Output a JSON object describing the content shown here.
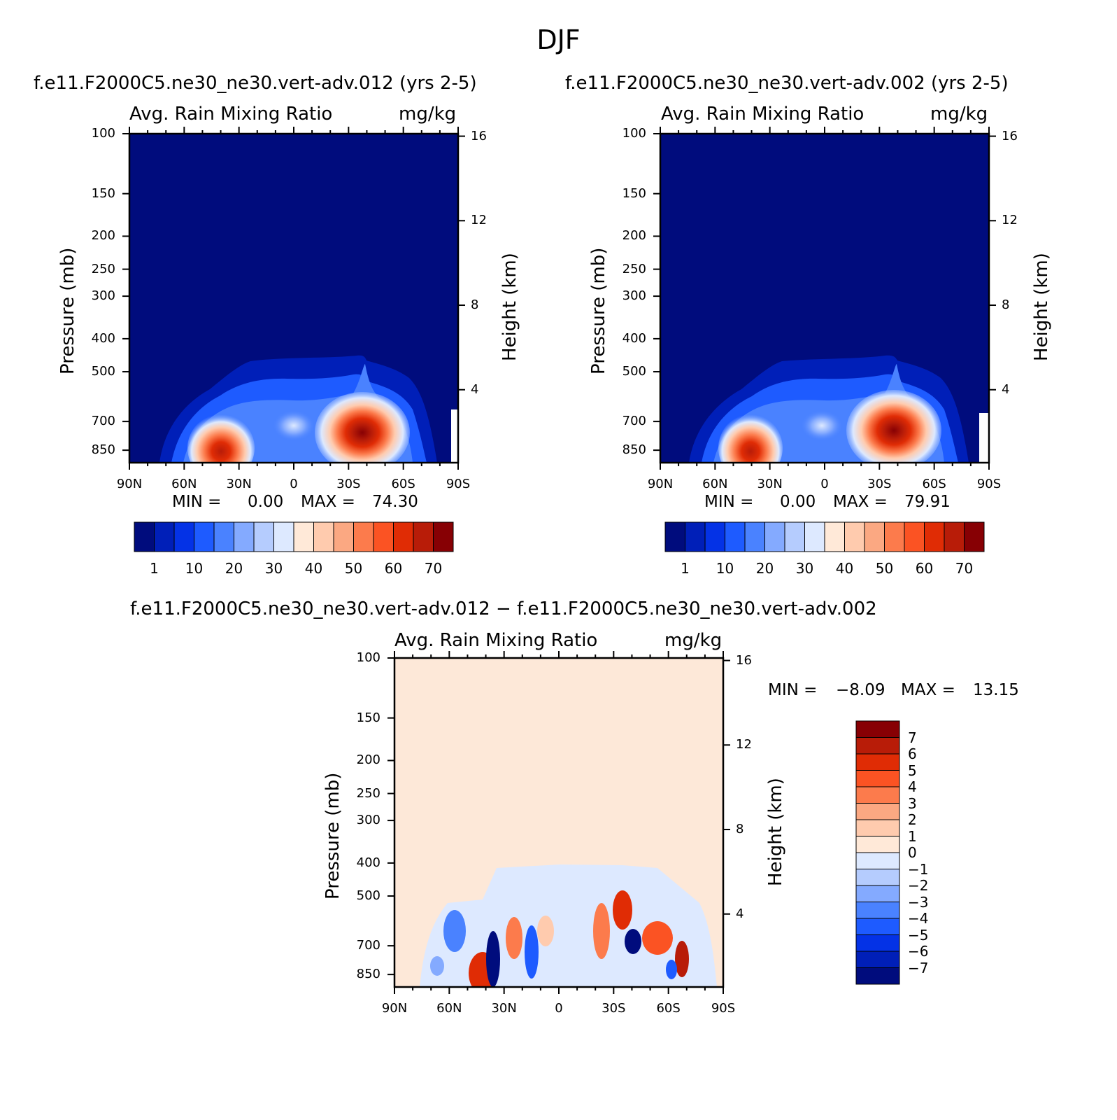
{
  "page": {
    "title": "DJF"
  },
  "panels": [
    {
      "id": "left",
      "case_title": "f.e11.F2000C5.ne30_ne30.vert-adv.012 (yrs 2-5)",
      "variable": "Avg. Rain Mixing Ratio",
      "units": "mg/kg",
      "stats": {
        "min_label": "MIN =",
        "min": "0.00",
        "max_label": "MAX =",
        "max": "74.30"
      }
    },
    {
      "id": "right",
      "case_title": "f.e11.F2000C5.ne30_ne30.vert-adv.002 (yrs 2-5)",
      "variable": "Avg. Rain Mixing Ratio",
      "units": "mg/kg",
      "stats": {
        "min_label": "MIN =",
        "min": "0.00",
        "max_label": "MAX =",
        "max": "79.91"
      }
    },
    {
      "id": "diff",
      "case_title": "f.e11.F2000C5.ne30_ne30.vert-adv.012 − f.e11.F2000C5.ne30_ne30.vert-adv.002",
      "variable": "Avg. Rain Mixing Ratio",
      "units": "mg/kg",
      "stats": {
        "min_label": "MIN =",
        "min": "−8.09",
        "max_label": "MAX =",
        "max": "13.15"
      }
    }
  ],
  "chart_data": [
    {
      "type": "heatmap",
      "panel": "left",
      "x_axis": {
        "ticks": [
          "90N",
          "60N",
          "30N",
          "0",
          "30S",
          "60S",
          "90S"
        ],
        "range": [
          90,
          -90
        ]
      },
      "y_left": {
        "label": "Pressure (mb)",
        "ticks": [
          100,
          150,
          200,
          250,
          300,
          400,
          500,
          700,
          850
        ],
        "log": true,
        "range": [
          100,
          925
        ]
      },
      "y_right": {
        "label": "Height (km)",
        "ticks": [
          16,
          12,
          8,
          4
        ]
      },
      "colorbar": {
        "labels": [
          "1",
          "10",
          "20",
          "30",
          "40",
          "50",
          "60",
          "70"
        ],
        "colors": [
          "#000c7d",
          "#001fb8",
          "#0432e6",
          "#1e5bff",
          "#4a82ff",
          "#84aaff",
          "#b5ccfe",
          "#dde9ff",
          "#ffe9d8",
          "#ffcbae",
          "#fba882",
          "#fc7b4c",
          "#fb5323",
          "#e02c05",
          "#b81c08",
          "#870004"
        ]
      },
      "features": [
        {
          "name": "northern-rain-max",
          "lat": 40,
          "p": 850,
          "value": 74.3
        },
        {
          "name": "southern-rain-max",
          "lat": -38,
          "p": 720,
          "value": 70
        }
      ]
    },
    {
      "type": "heatmap",
      "panel": "right",
      "x_axis": {
        "ticks": [
          "90N",
          "60N",
          "30N",
          "0",
          "30S",
          "60S",
          "90S"
        ],
        "range": [
          90,
          -90
        ]
      },
      "y_left": {
        "label": "Pressure (mb)",
        "ticks": [
          100,
          150,
          200,
          250,
          300,
          400,
          500,
          700,
          850
        ],
        "log": true,
        "range": [
          100,
          925
        ]
      },
      "y_right": {
        "label": "Height (km)",
        "ticks": [
          16,
          12,
          8,
          4
        ]
      },
      "colorbar": {
        "labels": [
          "1",
          "10",
          "20",
          "30",
          "40",
          "50",
          "60",
          "70"
        ],
        "colors": [
          "#000c7d",
          "#001fb8",
          "#0432e6",
          "#1e5bff",
          "#4a82ff",
          "#84aaff",
          "#b5ccfe",
          "#dde9ff",
          "#ffe9d8",
          "#ffcbae",
          "#fba882",
          "#fc7b4c",
          "#fb5323",
          "#e02c05",
          "#b81c08",
          "#870004"
        ]
      },
      "features": [
        {
          "name": "northern-rain-max",
          "lat": 38,
          "p": 840,
          "value": 70
        },
        {
          "name": "southern-rain-max",
          "lat": -36,
          "p": 710,
          "value": 79.91
        }
      ]
    },
    {
      "type": "heatmap",
      "panel": "diff",
      "x_axis": {
        "ticks": [
          "90N",
          "60N",
          "30N",
          "0",
          "30S",
          "60S",
          "90S"
        ],
        "range": [
          90,
          -90
        ]
      },
      "y_left": {
        "label": "Pressure (mb)",
        "ticks": [
          100,
          150,
          200,
          250,
          300,
          400,
          500,
          700,
          850
        ],
        "log": true,
        "range": [
          100,
          925
        ]
      },
      "y_right": {
        "label": "Height (km)",
        "ticks": [
          16,
          12,
          8,
          4
        ]
      },
      "colorbar": {
        "labels": [
          "7",
          "6",
          "5",
          "4",
          "3",
          "2",
          "1",
          "0",
          "−1",
          "−2",
          "−3",
          "−4",
          "−5",
          "−6",
          "−7"
        ],
        "colors": [
          "#870004",
          "#b81c08",
          "#e02c05",
          "#fb5323",
          "#fc7b4c",
          "#fba882",
          "#ffcbae",
          "#ffe9d8",
          "#dde9ff",
          "#b5ccfe",
          "#84aaff",
          "#4a82ff",
          "#1e5bff",
          "#0432e6",
          "#001fb8",
          "#000c7d"
        ]
      },
      "background_color": "#fde8d8"
    }
  ]
}
